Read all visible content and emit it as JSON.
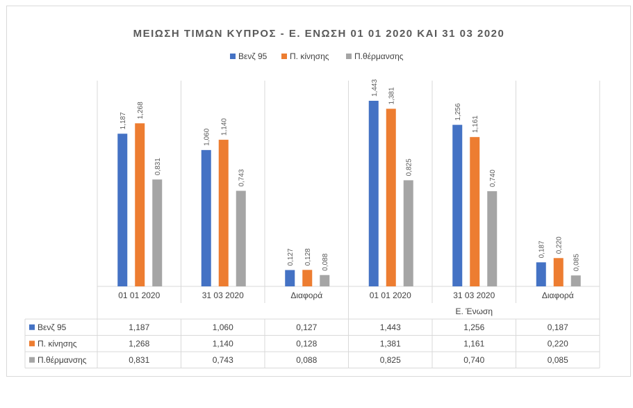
{
  "chart_data": {
    "type": "bar",
    "title": "ΜΕΙΩΣΗ ΤΙΜΩΝ ΚΥΠΡΟΣ  -  Ε. ΕΝΩΣΗ 01 01 2020 ΚΑΙ 31 03 2020",
    "categories": [
      "01 01 2020",
      "31 03 2020",
      "Διαφορά",
      "01 01 2020",
      "31 03 2020",
      "Διαφορά"
    ],
    "groups": [
      {
        "label": "",
        "span": [
          0,
          2
        ]
      },
      {
        "label": "Ε. Ένωση",
        "span": [
          3,
          5
        ]
      }
    ],
    "series": [
      {
        "name": "Βενζ 95",
        "color": "#4472c4",
        "values": [
          1.187,
          1.06,
          0.127,
          1.443,
          1.256,
          0.187
        ],
        "labels": [
          "1,187",
          "1,060",
          "0,127",
          "1,443",
          "1,256",
          "0,187"
        ]
      },
      {
        "name": "Π. κίνησης",
        "color": "#ed7d31",
        "values": [
          1.268,
          1.14,
          0.128,
          1.381,
          1.161,
          0.22
        ],
        "labels": [
          "1,268",
          "1,140",
          "0,128",
          "1,381",
          "1,161",
          "0,220"
        ]
      },
      {
        "name": "Π.θέρμανσης",
        "color": "#a5a5a5",
        "values": [
          0.831,
          0.743,
          0.088,
          0.825,
          0.74,
          0.085
        ],
        "labels": [
          "0,831",
          "0,743",
          "0,088",
          "0,825",
          "0,740",
          "0,085"
        ]
      }
    ],
    "ylim": [
      0,
      1.6
    ],
    "legend_position": "top",
    "data_table": true,
    "grid": false
  }
}
